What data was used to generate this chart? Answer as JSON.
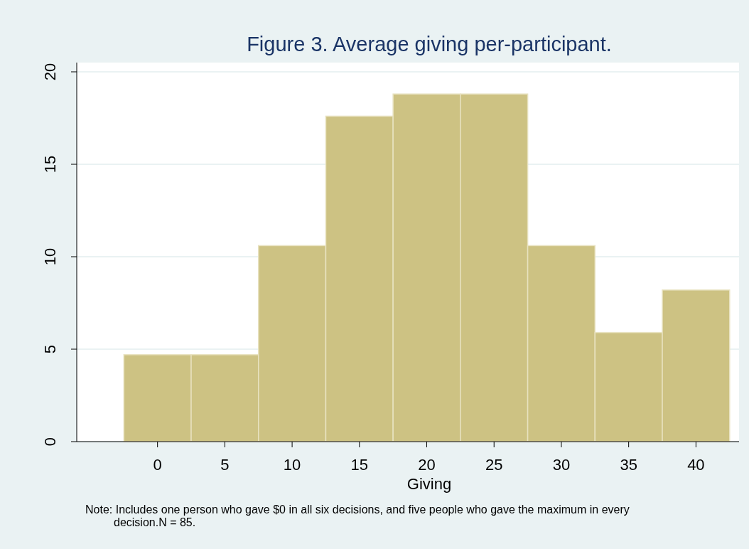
{
  "chart_data": {
    "type": "histogram",
    "title": "Figure 3. Average giving per-participant.",
    "xlabel": "Giving",
    "bins": [
      -2.5,
      2.5,
      7.5,
      12.5,
      17.5,
      22.5,
      27.5,
      32.5,
      37.5,
      42.5
    ],
    "values": [
      4.7,
      4.7,
      10.6,
      17.6,
      18.8,
      18.8,
      10.6,
      5.9,
      8.2
    ],
    "color": "#cdc283",
    "xlim": [
      -6,
      43.2
    ],
    "xticks": [
      0,
      5,
      10,
      15,
      20,
      25,
      30,
      35,
      40
    ],
    "ylim": [
      0,
      20.5
    ],
    "yticks": [
      0,
      5,
      10,
      15,
      20
    ],
    "grid": "y",
    "annotations": [
      "Note: Includes one person who gave $0 in all six decisions, and five people who gave the maximum in every decision.N = 85."
    ]
  }
}
